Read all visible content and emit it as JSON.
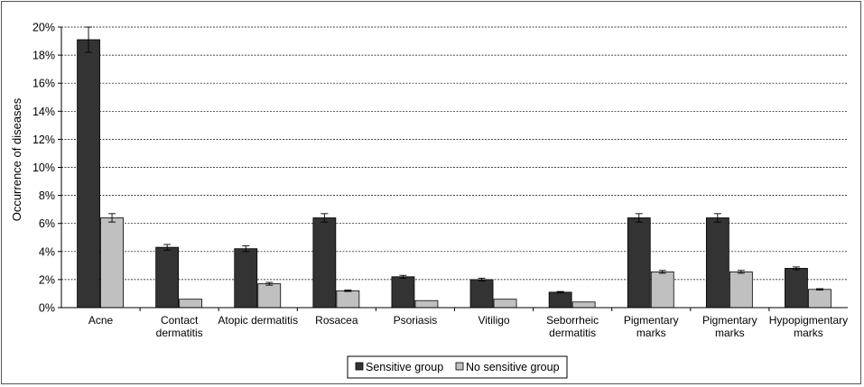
{
  "chart_data": {
    "type": "bar",
    "ylabel": "Occurrence of diseases",
    "ylim": [
      0,
      20
    ],
    "yticks": [
      "0%",
      "2%",
      "4%",
      "6%",
      "8%",
      "10%",
      "12%",
      "14%",
      "16%",
      "18%",
      "20%"
    ],
    "grid": "horizontal dashed",
    "legend_position": "bottom",
    "categories": [
      [
        "Acne"
      ],
      [
        "Contact",
        "dermatitis"
      ],
      [
        "Atopic dermatitis"
      ],
      [
        "Rosacea"
      ],
      [
        "Psoriasis"
      ],
      [
        "Vitiligo"
      ],
      [
        "Seborrheic",
        "dermatitis"
      ],
      [
        "Pigmentary",
        "marks"
      ],
      [
        "Pigmentary",
        "marks"
      ],
      [
        "Hypopigmentary",
        "marks"
      ]
    ],
    "series": [
      {
        "name": "Sensitive group",
        "color": "#333333",
        "values": [
          19.1,
          4.3,
          4.2,
          6.4,
          2.2,
          2.0,
          1.1,
          6.4,
          6.4,
          2.8
        ],
        "errors": [
          0.9,
          0.2,
          0.2,
          0.3,
          0.1,
          0.1,
          0.05,
          0.3,
          0.3,
          0.1
        ]
      },
      {
        "name": "No sensitive group",
        "color": "#c0c0c0",
        "values": [
          6.4,
          0.6,
          1.7,
          1.2,
          0.5,
          0.6,
          0.4,
          2.55,
          2.55,
          1.3
        ],
        "errors": [
          0.3,
          0.0,
          0.1,
          0.05,
          0.0,
          0.0,
          0.0,
          0.1,
          0.1,
          0.05
        ]
      }
    ]
  }
}
